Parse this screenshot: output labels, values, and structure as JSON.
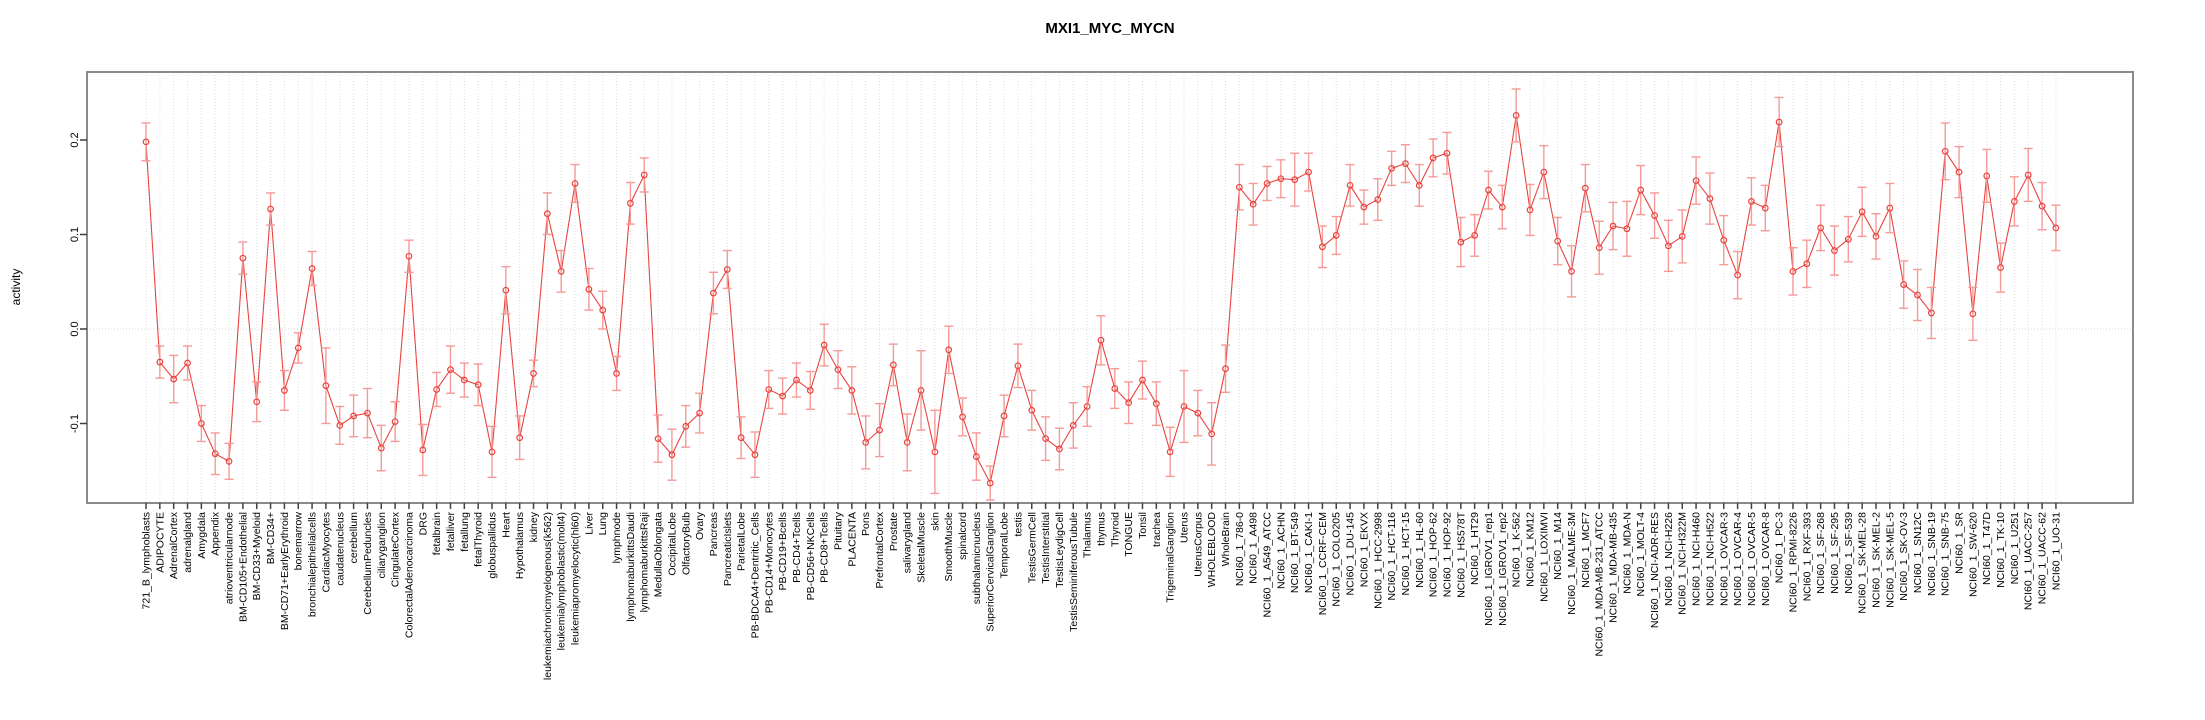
{
  "title": "MXI1_MYC_MYCN",
  "chart_data": {
    "type": "line",
    "subtype": "means-with-error-bars",
    "title": "MXI1_MYC_MYCN",
    "xlabel": "",
    "ylabel": "activity",
    "ylim": [
      -0.185,
      0.272
    ],
    "yticks": [
      "-0.1",
      "0.0",
      "0.1",
      "0.2"
    ],
    "ytick_values": [
      -0.1,
      0.0,
      0.1,
      0.2
    ],
    "grid": "dotted vertical gridline per category, dotted horizontal line at 0.0",
    "legend": "none",
    "marker": "open-circle",
    "colors": {
      "series": "#e8433f",
      "error_bar": "#f59a96",
      "grid": "#dcdcdc",
      "zero_line": "#d4d4d4",
      "frame": "#8a8a8a",
      "tick": "#3f3f3f"
    },
    "categories": [
      "721_B_lymphoblasts",
      "ADIPOCYTE",
      "AdrenalCortex",
      "adrenalgland",
      "Amygdala",
      "Appendix",
      "atrioventricularnode",
      "BM-CD105+Endothelial",
      "BM-CD33+Myeloid",
      "BM-CD34+",
      "BM-CD71+EarlyErythroid",
      "bonemarrow",
      "bronchialepithelialcells",
      "CardiacMyocytes",
      "caudatenucleus",
      "cerebellum",
      "CerebellumPeduncles",
      "ciliaryganglion",
      "CingulateCortex",
      "ColorectalAdenocarcinoma",
      "DRG",
      "fetalbrain",
      "fetalliver",
      "fetallung",
      "fetalThyroid",
      "globuspallidus",
      "Heart",
      "Hypothalamus",
      "kidney",
      "leukemiachronicmyelogenous(k562)",
      "leukemialymphoblastic(molt4)",
      "leukemiapromyelocytic(hl60)",
      "Liver",
      "Lung",
      "lymphnode",
      "lymphomaburkittsDaudi",
      "lymphomaburkittsRaji",
      "MedullaOblongata",
      "OccipitalLobe",
      "OlfactoryBulb",
      "Ovary",
      "Pancreas",
      "PancreaticIslets",
      "ParietalLobe",
      "PB-BDCA4+Dentritic_Cells",
      "PB-CD14+Monocytes",
      "PB-CD19+Bcells",
      "PB-CD4+Tcells",
      "PB-CD56+NKCells",
      "PB-CD8+Tcells",
      "Pituitary",
      "PLACENTA",
      "Pons",
      "PrefrontalCortex",
      "Prostate",
      "salivarygland",
      "SkeletalMuscle",
      "skin",
      "SmoothMuscle",
      "spinalcord",
      "subthalamicnucleus",
      "SuperiorCervicalGanglion",
      "TemporalLobe",
      "testis",
      "TestisGermCell",
      "TestisInterstitial",
      "TestisLeydigCell",
      "TestisSeminiferousTubule",
      "Thalamus",
      "thymus",
      "Thyroid",
      "TONGUE",
      "Tonsil",
      "trachea",
      "TrigeminalGanglion",
      "Uterus",
      "UterusCorpus",
      "WHOLEBLOOD",
      "WholeBrain",
      "NCI60_1_786-0",
      "NCI60_1_A498",
      "NCI60_1_A549_ATCC",
      "NCI60_1_ACHN",
      "NCI60_1_BT-549",
      "NCI60_1_CAKI-1",
      "NCI60_1_CCRF-CEM",
      "NCI60_1_COLO205",
      "NCI60_1_DU-145",
      "NCI60_1_EKVX",
      "NCI60_1_HCC-2998",
      "NCI60_1_HCT-116",
      "NCI60_1_HCT-15",
      "NCI60_1_HL-60",
      "NCI60_1_HOP-62",
      "NCI60_1_HOP-92",
      "NCI60_1_HS578T",
      "NCI60_1_HT29",
      "NCI60_1_IGROV1_rep1",
      "NCI60_1_IGROV1_rep2",
      "NCI60_1_K-562",
      "NCI60_1_KM12",
      "NCI60_1_LOXIMVI",
      "NCI60_1_M14",
      "NCI60_1_MALME-3M",
      "NCI60_1_MCF7",
      "NCI60_1_MDA-MB-231_ATCC",
      "NCI60_1_MDA-MB-435",
      "NCI60_1_MDA-N",
      "NCI60_1_MOLT-4",
      "NCI60_1_NCI-ADR-RES",
      "NCI60_1_NCI-H226",
      "NCI60_1_NCI-H322M",
      "NCI60_1_NCI-H460",
      "NCI60_1_NCI-H522",
      "NCI60_1_OVCAR-3",
      "NCI60_1_OVCAR-4",
      "NCI60_1_OVCAR-5",
      "NCI60_1_OVCAR-8",
      "NCI60_1_PC-3",
      "NCI60_1_RPMI-8226",
      "NCI60_1_RXF-393",
      "NCI60_1_SF-268",
      "NCI60_1_SF-295",
      "NCI60_1_SF-539",
      "NCI60_1_SK-MEL-28",
      "NCI60_1_SK-MEL-2",
      "NCI60_1_SK-MEL-5",
      "NCI60_1_SK-OV-3",
      "NCI60_1_SN12C",
      "NCI60_1_SNB-19",
      "NCI60_1_SNB-75",
      "NCI60_1_SR",
      "NCI60_1_SW-620",
      "NCI60_1_T47D",
      "NCI60_1_TK-10",
      "NCI60_1_U251",
      "NCI60_1_UACC-257",
      "NCI60_1_UACC-62",
      "NCI60_1_UO-31"
    ],
    "values": [
      0.198,
      -0.035,
      -0.053,
      -0.036,
      -0.1,
      -0.132,
      -0.14,
      0.075,
      -0.077,
      0.127,
      -0.065,
      -0.02,
      0.064,
      -0.06,
      -0.102,
      -0.092,
      -0.089,
      -0.126,
      -0.098,
      0.077,
      -0.128,
      -0.064,
      -0.043,
      -0.054,
      -0.059,
      -0.13,
      0.041,
      -0.115,
      -0.047,
      0.122,
      0.061,
      0.154,
      0.042,
      0.02,
      -0.047,
      0.133,
      0.163,
      -0.116,
      -0.133,
      -0.103,
      -0.089,
      0.038,
      0.063,
      -0.115,
      -0.133,
      -0.064,
      -0.071,
      -0.054,
      -0.065,
      -0.017,
      -0.043,
      -0.065,
      -0.12,
      -0.107,
      -0.038,
      -0.12,
      -0.065,
      -0.13,
      -0.022,
      -0.093,
      -0.135,
      -0.163,
      -0.092,
      -0.039,
      -0.086,
      -0.116,
      -0.127,
      -0.102,
      -0.082,
      -0.012,
      -0.063,
      -0.078,
      -0.054,
      -0.079,
      -0.13,
      -0.082,
      -0.089,
      -0.111,
      -0.042,
      0.15,
      0.132,
      0.154,
      0.159,
      0.158,
      0.166,
      0.087,
      0.099,
      0.152,
      0.129,
      0.137,
      0.17,
      0.175,
      0.152,
      0.181,
      0.186,
      0.092,
      0.099,
      0.147,
      0.129,
      0.226,
      0.126,
      0.166,
      0.093,
      0.061,
      0.149,
      0.086,
      0.109,
      0.106,
      0.147,
      0.12,
      0.088,
      0.098,
      0.157,
      0.138,
      0.094,
      0.057,
      0.135,
      0.128,
      0.219,
      0.061,
      0.069,
      0.107,
      0.083,
      0.095,
      0.124,
      0.098,
      0.128,
      0.047,
      0.036,
      0.017,
      0.188,
      0.166,
      0.016,
      0.162,
      0.065,
      0.135,
      0.163,
      0.13,
      0.107
    ],
    "errors": [
      0.02,
      0.017,
      0.025,
      0.018,
      0.019,
      0.022,
      0.019,
      0.017,
      0.021,
      0.017,
      0.021,
      0.016,
      0.018,
      0.04,
      0.02,
      0.022,
      0.026,
      0.024,
      0.021,
      0.017,
      0.027,
      0.018,
      0.025,
      0.018,
      0.022,
      0.027,
      0.025,
      0.023,
      0.014,
      0.022,
      0.022,
      0.02,
      0.022,
      0.02,
      0.018,
      0.022,
      0.018,
      0.025,
      0.027,
      0.022,
      0.021,
      0.022,
      0.02,
      0.022,
      0.024,
      0.02,
      0.019,
      0.018,
      0.02,
      0.022,
      0.02,
      0.025,
      0.028,
      0.028,
      0.022,
      0.03,
      0.042,
      0.044,
      0.025,
      0.02,
      0.025,
      0.018,
      0.022,
      0.023,
      0.021,
      0.023,
      0.022,
      0.024,
      0.021,
      0.026,
      0.021,
      0.022,
      0.02,
      0.023,
      0.026,
      0.038,
      0.024,
      0.033,
      0.025,
      0.024,
      0.022,
      0.018,
      0.02,
      0.028,
      0.02,
      0.022,
      0.02,
      0.022,
      0.018,
      0.022,
      0.018,
      0.02,
      0.022,
      0.02,
      0.022,
      0.026,
      0.022,
      0.02,
      0.023,
      0.028,
      0.027,
      0.028,
      0.025,
      0.027,
      0.025,
      0.028,
      0.025,
      0.029,
      0.026,
      0.024,
      0.027,
      0.028,
      0.025,
      0.027,
      0.026,
      0.025,
      0.025,
      0.024,
      0.026,
      0.025,
      0.025,
      0.024,
      0.026,
      0.024,
      0.026,
      0.024,
      0.026,
      0.025,
      0.027,
      0.027,
      0.03,
      0.027,
      0.028,
      0.028,
      0.026,
      0.026,
      0.028,
      0.025,
      0.024
    ]
  }
}
